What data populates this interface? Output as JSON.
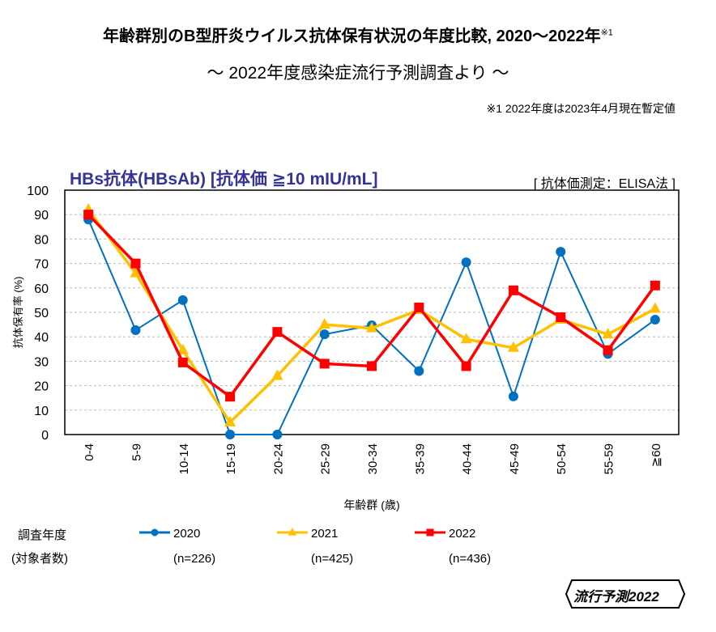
{
  "title": "年齢群別のB型肝炎ウイルス抗体保有状況の年度比較, 2020〜2022年",
  "title_footnote_mark": "※1",
  "subtitle": "〜 2022年度感染症流行予測調査より 〜",
  "footnote": "※1  2022年度は2023年4月現在暫定値",
  "panel_title": "HBs抗体(HBsAb) [抗体価 ≧10 mIU/mL]",
  "method": "[ 抗体価測定：ELISA法 ]",
  "legend_head": {
    "line1": "調査年度",
    "line2": "(対象者数)"
  },
  "logo_text": "流行予測2022",
  "chart_data": {
    "type": "line",
    "xlabel": "年齢群 (歳)",
    "ylabel": "抗体保有率 (%)",
    "ylim": [
      0,
      100
    ],
    "yticks": [
      "0",
      "10",
      "20",
      "30",
      "40",
      "50",
      "60",
      "70",
      "80",
      "90",
      "100"
    ],
    "grid": "horizontal dashed",
    "legend": "bottom",
    "categories": [
      "0-4",
      "5-9",
      "10-14",
      "15-19",
      "20-24",
      "25-29",
      "30-34",
      "35-39",
      "40-44",
      "45-49",
      "50-54",
      "55-59",
      "≧60"
    ],
    "series": [
      {
        "name": "2020",
        "n": "(n=226)",
        "color": "#0070C0",
        "marker": "circle",
        "values": [
          88,
          42.7,
          55,
          0,
          0,
          41,
          44.7,
          26,
          70.5,
          15.6,
          74.8,
          33,
          47
        ]
      },
      {
        "name": "2021",
        "n": "(n=425)",
        "color": "#FFC000",
        "marker": "triangle",
        "values": [
          92,
          66,
          34.5,
          5,
          24,
          45,
          43.5,
          51,
          39,
          35.5,
          47,
          41,
          51.5
        ]
      },
      {
        "name": "2022",
        "n": "(n=436)",
        "color": "#FF0000",
        "marker": "square",
        "values": [
          90,
          70,
          29.5,
          15.5,
          42,
          29,
          28,
          52,
          28,
          59,
          48,
          34.5,
          61
        ]
      }
    ]
  }
}
